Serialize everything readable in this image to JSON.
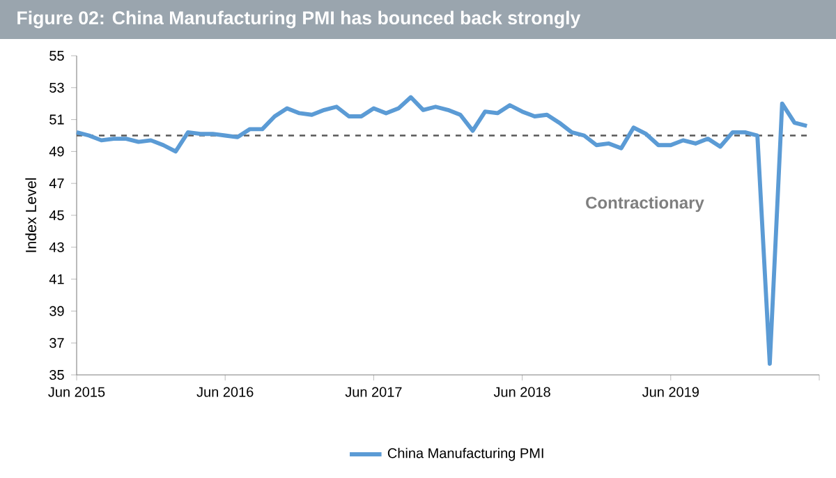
{
  "chart_data": {
    "type": "line",
    "title": "Figure 02: China Manufacturing PMI has bounced back strongly",
    "ylabel": "Index Level",
    "x": [
      "2015-06",
      "2015-07",
      "2015-08",
      "2015-09",
      "2015-10",
      "2015-11",
      "2015-12",
      "2016-01",
      "2016-02",
      "2016-03",
      "2016-04",
      "2016-05",
      "2016-06",
      "2016-07",
      "2016-08",
      "2016-09",
      "2016-10",
      "2016-11",
      "2016-12",
      "2017-01",
      "2017-02",
      "2017-03",
      "2017-04",
      "2017-05",
      "2017-06",
      "2017-07",
      "2017-08",
      "2017-09",
      "2017-10",
      "2017-11",
      "2017-12",
      "2018-01",
      "2018-02",
      "2018-03",
      "2018-04",
      "2018-05",
      "2018-06",
      "2018-07",
      "2018-08",
      "2018-09",
      "2018-10",
      "2018-11",
      "2018-12",
      "2019-01",
      "2019-02",
      "2019-03",
      "2019-04",
      "2019-05",
      "2019-06",
      "2019-07",
      "2019-08",
      "2019-09",
      "2019-10",
      "2019-11",
      "2019-12",
      "2020-01",
      "2020-02",
      "2020-03",
      "2020-04",
      "2020-05"
    ],
    "series": [
      {
        "name": "China Manufacturing PMI",
        "color": "#5b9bd5",
        "values": [
          50.2,
          50.0,
          49.7,
          49.8,
          49.8,
          49.6,
          49.7,
          49.4,
          49.0,
          50.2,
          50.1,
          50.1,
          50.0,
          49.9,
          50.4,
          50.4,
          51.2,
          51.7,
          51.4,
          51.3,
          51.6,
          51.8,
          51.2,
          51.2,
          51.7,
          51.4,
          51.7,
          52.4,
          51.6,
          51.8,
          51.6,
          51.3,
          50.3,
          51.5,
          51.4,
          51.9,
          51.5,
          51.2,
          51.3,
          50.8,
          50.2,
          50.0,
          49.4,
          49.5,
          49.2,
          50.5,
          50.1,
          49.4,
          49.4,
          49.7,
          49.5,
          49.8,
          49.3,
          50.2,
          50.2,
          50.0,
          35.7,
          52.0,
          50.8,
          50.6
        ]
      }
    ],
    "xlim": [
      "2015-06",
      "2020-06"
    ],
    "xticks": [
      {
        "value": "2015-06",
        "label": "Jun 2015"
      },
      {
        "value": "2016-06",
        "label": "Jun 2016"
      },
      {
        "value": "2017-06",
        "label": "Jun 2017"
      },
      {
        "value": "2018-06",
        "label": "Jun 2018"
      },
      {
        "value": "2019-06",
        "label": "Jun 2019"
      },
      {
        "value": "2020-06",
        "label": null
      }
    ],
    "ylim": [
      35,
      55
    ],
    "yticks": [
      35,
      37,
      39,
      41,
      43,
      45,
      47,
      49,
      51,
      53,
      55
    ],
    "ref_lines": [
      {
        "axis": "y",
        "value": 50,
        "color": "#595959",
        "line_style": "dashed"
      }
    ],
    "annotations": [
      "Contractionary"
    ],
    "grid": false,
    "legend": "bottom",
    "line_style": "solid"
  }
}
